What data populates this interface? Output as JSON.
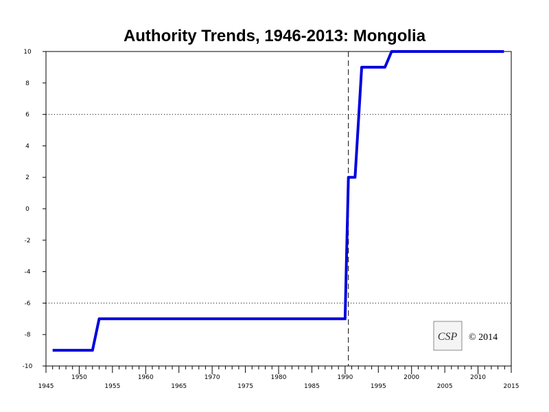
{
  "chart_data": {
    "type": "line",
    "title": "Authority Trends, 1946-2013: Mongolia",
    "xlabel": "",
    "ylabel": "",
    "xlim": [
      1945,
      2015
    ],
    "ylim": [
      -10,
      10
    ],
    "x_major_ticks": [
      1945,
      1950,
      1955,
      1960,
      1965,
      1970,
      1975,
      1980,
      1985,
      1990,
      1995,
      2000,
      2005,
      2010,
      2015
    ],
    "y_ticks": [
      10,
      8,
      6,
      4,
      2,
      0,
      -2,
      -4,
      -6,
      -8,
      -10
    ],
    "reference_lines": {
      "horizontal_dotted": [
        6,
        -6
      ],
      "vertical_dashed": [
        1990.5
      ]
    },
    "series": [
      {
        "color": "#0000dd",
        "points": [
          [
            1946,
            -9
          ],
          [
            1952,
            -9
          ],
          [
            1953,
            -7
          ],
          [
            1990,
            -7
          ],
          [
            1990.5,
            2
          ],
          [
            1991.5,
            2
          ],
          [
            1992.5,
            9
          ],
          [
            1996,
            9
          ],
          [
            1997,
            10
          ],
          [
            2013.9,
            10
          ]
        ]
      }
    ],
    "grid": false
  },
  "logo": {
    "text": "CSP",
    "copyright": "© 2014"
  }
}
